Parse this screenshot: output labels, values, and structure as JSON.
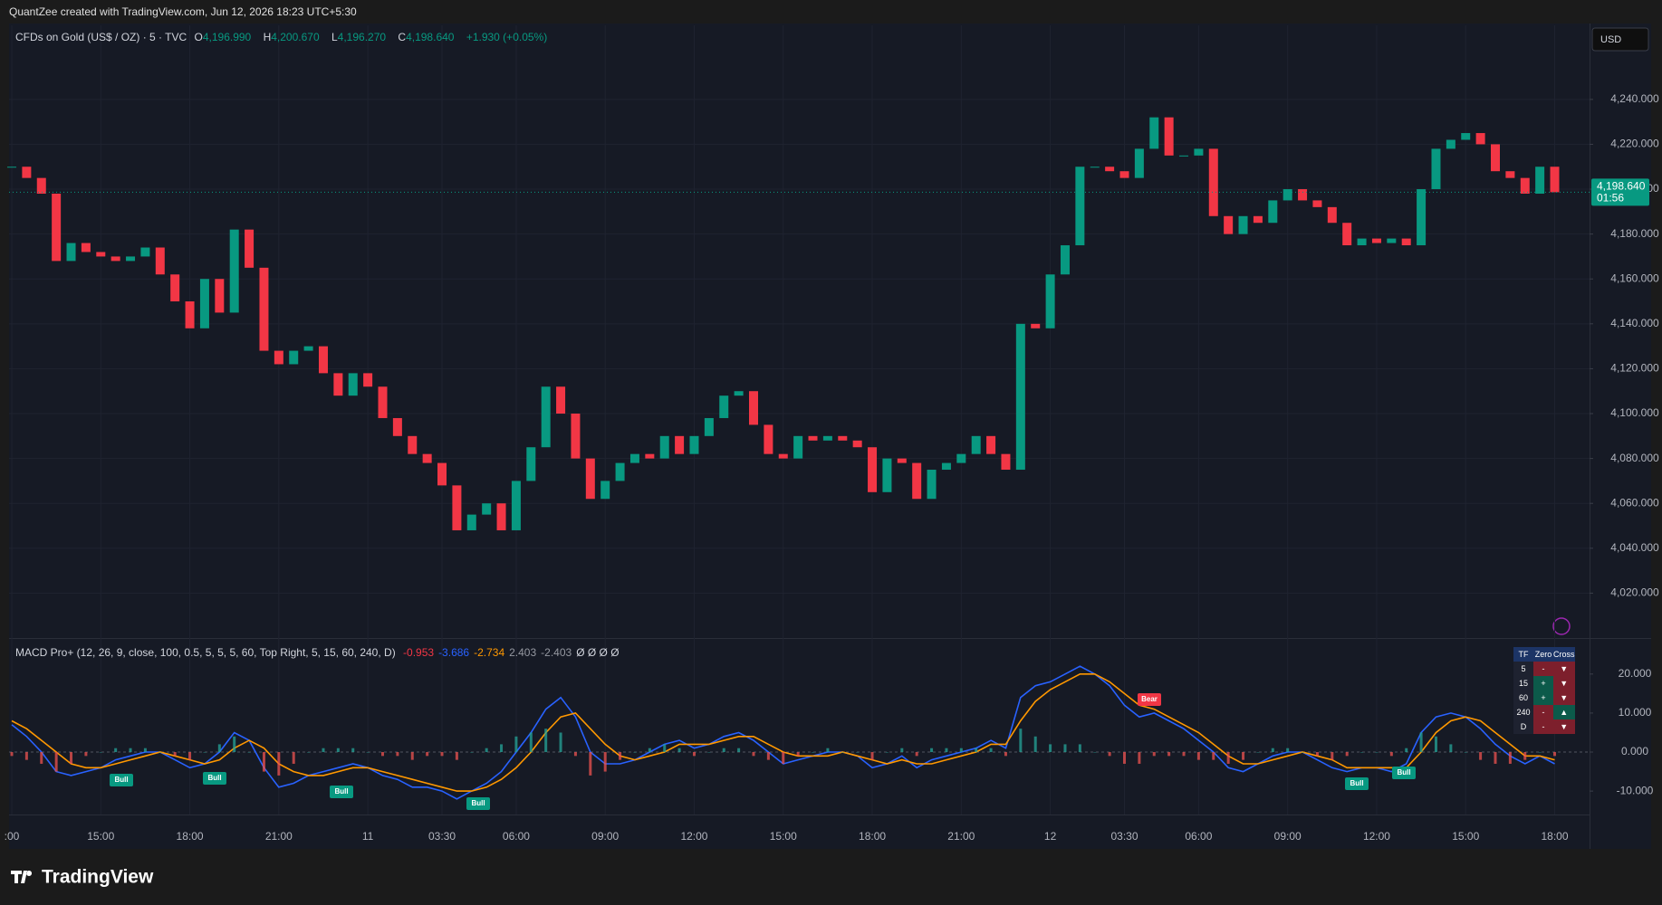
{
  "header": {
    "attribution": "QuantZee created with TradingView.com, Jun 12, 2026 18:23 UTC+5:30",
    "currency": "USD"
  },
  "footer": {
    "brand": "TradingView"
  },
  "chart_data": [
    {
      "type": "candlestick",
      "title": "CFDs on Gold (US$ / OZ) · 5 · TVC",
      "legend": [
        {
          "label": "O",
          "value": "4,196.990"
        },
        {
          "label": "H",
          "value": "4,200.670"
        },
        {
          "label": "L",
          "value": "4,196.270"
        },
        {
          "label": "C",
          "value": "4,198.640"
        }
      ],
      "change": "+1.930 (+0.05%)",
      "up_color": "#089981",
      "down_color": "#f23645",
      "categories": [
        ":00",
        null,
        null,
        null,
        null,
        null,
        "15:00",
        null,
        null,
        null,
        null,
        null,
        "18:00",
        null,
        null,
        null,
        null,
        null,
        "21:00",
        null,
        null,
        null,
        null,
        null,
        "11",
        null,
        null,
        null,
        null,
        "03:30",
        null,
        null,
        null,
        null,
        "06:00",
        null,
        null,
        null,
        null,
        null,
        "09:00",
        null,
        null,
        null,
        null,
        null,
        "12:00",
        null,
        null,
        null,
        null,
        null,
        "15:00",
        null,
        null,
        null,
        null,
        null,
        "18:00",
        null,
        null,
        null,
        null,
        null,
        "21:00",
        null,
        null,
        null,
        null,
        null,
        "12",
        null,
        null,
        null,
        null,
        "03:30",
        null,
        null,
        null,
        null,
        "06:00",
        null,
        null,
        null,
        null,
        null,
        "09:00",
        null,
        null,
        null,
        null,
        null,
        "12:00",
        null,
        null,
        null,
        null,
        null,
        "15:00",
        null,
        null,
        null,
        null,
        null,
        "18:00"
      ],
      "values": [
        4210,
        4205,
        4198,
        4168,
        4176,
        4172,
        4170,
        4168,
        4170,
        4174,
        4162,
        4150,
        4138,
        4160,
        4145,
        4182,
        4165,
        4128,
        4122,
        4128,
        4130,
        4118,
        4108,
        4118,
        4112,
        4098,
        4090,
        4082,
        4078,
        4068,
        4048,
        4055,
        4060,
        4048,
        4070,
        4085,
        4112,
        4100,
        4080,
        4062,
        4070,
        4078,
        4082,
        4080,
        4090,
        4082,
        4090,
        4098,
        4108,
        4110,
        4095,
        4082,
        4080,
        4090,
        4088,
        4090,
        4088,
        4085,
        4065,
        4080,
        4078,
        4062,
        4075,
        4078,
        4082,
        4090,
        4082,
        4075,
        4140,
        4138,
        4162,
        4175,
        4210,
        4210,
        4208,
        4205,
        4218,
        4232,
        4215,
        4215,
        4218,
        4188,
        4180,
        4188,
        4185,
        4195,
        4200,
        4195,
        4192,
        4185,
        4175,
        4178,
        4176,
        4178,
        4175,
        4200,
        4218,
        4222,
        4225,
        4220,
        4208,
        4205,
        4198,
        4210,
        4198.64
      ],
      "last_price": {
        "value": 4198.64,
        "label": "4,198.640",
        "countdown": "01:56"
      },
      "ylim": [
        4000,
        4273
      ],
      "yticks": [
        {
          "value": 4020,
          "label": "4,020.000"
        },
        {
          "value": 4040,
          "label": "4,040.000"
        },
        {
          "value": 4060,
          "label": "4,060.000"
        },
        {
          "value": 4080,
          "label": "4,080.000"
        },
        {
          "value": 4100,
          "label": "4,100.000"
        },
        {
          "value": 4120,
          "label": "4,120.000"
        },
        {
          "value": 4140,
          "label": "4,140.000"
        },
        {
          "value": 4160,
          "label": "4,160.000"
        },
        {
          "value": 4180,
          "label": "4,180.000"
        },
        {
          "value": 4200,
          "label": "4,200.000"
        },
        {
          "value": 4220,
          "label": "4,220.000"
        },
        {
          "value": 4240,
          "label": "4,240.000"
        }
      ],
      "grid": true
    },
    {
      "type": "macd",
      "title": "MACD Pro+ (12, 26, 9, close, 100, 0.5, 5, 5, 5, 60, Top Right, 5, 15, 60, 240, D)",
      "legend_values": [
        {
          "text": "-0.953",
          "color": "#f23645"
        },
        {
          "text": "-3.686",
          "color": "#2962ff"
        },
        {
          "text": "-2.734",
          "color": "#ff9800"
        },
        {
          "text": "2.403",
          "color": "#9598a1"
        },
        {
          "text": "-2.403",
          "color": "#9598a1"
        },
        {
          "text": "Ø Ø Ø Ø",
          "color": "#d1d4dc"
        }
      ],
      "series": [
        {
          "name": "MACD",
          "color": "#2962ff",
          "values": [
            7,
            4,
            0,
            -5,
            -6,
            -5,
            -4,
            -2,
            -1,
            0,
            0,
            -2,
            -4,
            -3,
            0,
            5,
            3,
            -4,
            -9,
            -8,
            -6,
            -5,
            -4,
            -3,
            -4,
            -6,
            -7,
            -9,
            -9,
            -10,
            -12,
            -10,
            -8,
            -5,
            0,
            5,
            11,
            14,
            9,
            0,
            -3,
            -3,
            -2,
            0,
            2,
            3,
            1,
            2,
            4,
            5,
            3,
            0,
            -3,
            -2,
            -1,
            0,
            0,
            -1,
            -4,
            -3,
            -1,
            -4,
            -2,
            -1,
            0,
            1,
            3,
            1,
            14,
            17,
            18,
            20,
            22,
            20,
            17,
            12,
            9,
            10,
            8,
            6,
            3,
            0,
            -4,
            -5,
            -3,
            -1,
            0,
            0,
            -2,
            -4,
            -5,
            -4,
            -4,
            -5,
            -3,
            5,
            9,
            10,
            9,
            6,
            2,
            -1,
            -3,
            -1,
            -3
          ]
        },
        {
          "name": "Signal",
          "color": "#ff9800",
          "values": [
            8,
            6,
            3,
            0,
            -3,
            -4,
            -4,
            -3,
            -2,
            -1,
            0,
            -1,
            -2,
            -3,
            -2,
            1,
            3,
            1,
            -3,
            -5,
            -6,
            -6,
            -5,
            -4,
            -4,
            -5,
            -6,
            -7,
            -8,
            -9,
            -10,
            -10,
            -9,
            -7,
            -4,
            0,
            5,
            9,
            10,
            6,
            2,
            -1,
            -2,
            -1,
            0,
            2,
            2,
            2,
            3,
            4,
            4,
            2,
            0,
            -1,
            -1,
            -1,
            0,
            -1,
            -2,
            -3,
            -2,
            -3,
            -3,
            -2,
            -1,
            0,
            2,
            2,
            8,
            13,
            16,
            18,
            20,
            20,
            18,
            15,
            12,
            11,
            9,
            7,
            5,
            2,
            -1,
            -3,
            -3,
            -2,
            -1,
            0,
            -1,
            -2,
            -4,
            -4,
            -4,
            -4,
            -4,
            0,
            5,
            8,
            9,
            8,
            5,
            2,
            -1,
            -1,
            -2
          ]
        },
        {
          "name": "Histogram",
          "color": "#26a69a",
          "negative_color": "#ef5350",
          "values": [
            -1,
            -2,
            -3,
            -5,
            -3,
            -1,
            0,
            1,
            1,
            1,
            0,
            -1,
            -2,
            0,
            2,
            4,
            0,
            -5,
            -6,
            -3,
            0,
            1,
            1,
            1,
            0,
            -1,
            -1,
            -2,
            -1,
            -1,
            -2,
            0,
            1,
            2,
            4,
            5,
            6,
            5,
            -1,
            -6,
            -5,
            -2,
            0,
            1,
            2,
            1,
            -1,
            0,
            1,
            1,
            -1,
            -2,
            -3,
            -1,
            0,
            1,
            0,
            0,
            -2,
            0,
            1,
            -1,
            1,
            1,
            1,
            1,
            1,
            -1,
            6,
            4,
            2,
            2,
            2,
            0,
            -1,
            -3,
            -3,
            -1,
            -1,
            -1,
            -2,
            -2,
            -3,
            -2,
            0,
            1,
            1,
            0,
            -1,
            -2,
            -1,
            0,
            0,
            -1,
            1,
            5,
            4,
            2,
            0,
            -2,
            -3,
            -3,
            -2,
            0,
            -1
          ]
        }
      ],
      "signals": [
        {
          "label": "Bull",
          "color": "#089981"
        },
        {
          "label": "Bull",
          "color": "#089981"
        },
        {
          "label": "Bull",
          "color": "#089981"
        },
        {
          "label": "Bull",
          "color": "#089981"
        },
        {
          "label": "Bear",
          "color": "#f23645"
        },
        {
          "label": "Bull",
          "color": "#089981"
        },
        {
          "label": "Bull",
          "color": "#089981"
        }
      ],
      "table": {
        "header": [
          "TF",
          "Zero",
          "Cross"
        ],
        "header_color": "#1c3466",
        "rows": [
          {
            "tf": "5",
            "zero": "-",
            "zero_color": "#7d1f2c",
            "cross": "▼",
            "cross_color": "#7d1f2c"
          },
          {
            "tf": "15",
            "zero": "+",
            "zero_color": "#0c5a4a",
            "cross": "▼",
            "cross_color": "#7d1f2c"
          },
          {
            "tf": "60",
            "zero": "+",
            "zero_color": "#0c5a4a",
            "cross": "▼",
            "cross_color": "#7d1f2c"
          },
          {
            "tf": "240",
            "zero": "-",
            "zero_color": "#7d1f2c",
            "cross": "▲",
            "cross_color": "#0c5a4a"
          },
          {
            "tf": "D",
            "zero": "-",
            "zero_color": "#7d1f2c",
            "cross": "▼",
            "cross_color": "#7d1f2c"
          }
        ]
      },
      "ylim": [
        -16,
        29
      ],
      "yticks": [
        {
          "value": -10,
          "label": "-10.000"
        },
        {
          "value": 0,
          "label": "0.000"
        },
        {
          "value": 10,
          "label": "10.000"
        },
        {
          "value": 20,
          "label": "20.000"
        }
      ]
    }
  ]
}
